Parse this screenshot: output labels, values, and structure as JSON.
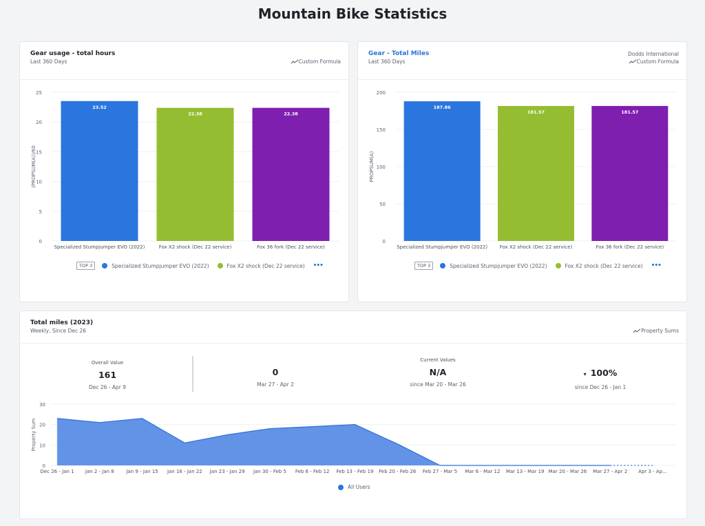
{
  "page": {
    "title": "Mountain Bike Statistics"
  },
  "cards": {
    "hours": {
      "title": "Gear usage - total hours",
      "subtitle": "Last 360 Days",
      "metric": "Custom Formula",
      "legend": {
        "badge": "TOP 3",
        "items": [
          "Specialized Stumpjumper EVO (2022)",
          "Fox X2 shock (Dec 22 service)"
        ],
        "more": "•••"
      }
    },
    "miles": {
      "title": "Gear - Total Miles",
      "subtitle": "Last 360 Days",
      "org": "Dodds International",
      "metric": "Custom Formula",
      "legend": {
        "badge": "TOP 3",
        "items": [
          "Specialized Stumpjumper EVO (2022)",
          "Fox X2 shock (Dec 22 service)"
        ],
        "more": "•••"
      }
    },
    "total": {
      "title": "Total miles (2023)",
      "subtitle": "Weekly, Since Dec 26",
      "metric": "Property Sums",
      "kpis": {
        "overall": {
          "label": "Overall Value",
          "value": "161",
          "range": "Dec 26 - Apr 9"
        },
        "latest": {
          "value": "0",
          "range": "Mar 27 - Apr 2"
        },
        "current": {
          "label": "Current Values",
          "value": "N/A",
          "range": "since Mar 20 - Mar 26"
        },
        "change": {
          "arrow": "▾",
          "value": "100%",
          "range": "since Dec 26 - Jan 1"
        }
      },
      "legend": {
        "items": [
          "All Users"
        ]
      }
    }
  },
  "colors": {
    "blue": "#2a76de",
    "green": "#95bd31",
    "purple": "#7e1fb0",
    "area": "#6393e6",
    "areaLine": "#2f6fd8"
  },
  "chart_data": [
    {
      "type": "bar",
      "title": "Gear usage - total hours",
      "ylabel": "(PROPSUM(A))/60",
      "xlabel": "",
      "categories": [
        "Specialized Stumpjumper EVO (2022)",
        "Fox X2 shock (Dec 22 service)",
        "Fox 36 fork (Dec 22 service)"
      ],
      "values": [
        23.52,
        22.38,
        22.38
      ],
      "labels": [
        "23.52",
        "22.38",
        "22.38"
      ],
      "yticks": [
        0,
        5,
        10,
        15,
        20,
        25
      ],
      "ylim": [
        0,
        25
      ],
      "grid": true
    },
    {
      "type": "bar",
      "title": "Gear - Total Miles",
      "ylabel": "PROPSUM(A)",
      "xlabel": "",
      "categories": [
        "Specialized Stumpjumper EVO (2022)",
        "Fox X2 shock (Dec 22 service)",
        "Fox 36 fork (Dec 22 service)"
      ],
      "values": [
        187.86,
        181.57,
        181.57
      ],
      "labels": [
        "187.86",
        "181.57",
        "181.57"
      ],
      "yticks": [
        0,
        50,
        100,
        150,
        200
      ],
      "ylim": [
        0,
        200
      ],
      "grid": true
    },
    {
      "type": "area",
      "title": "Total miles (2023)",
      "ylabel": "Property Sum",
      "xlabel": "",
      "categories": [
        "Dec 26 - Jan 1",
        "Jan 2 - Jan 8",
        "Jan 9 - Jan 15",
        "Jan 16 - Jan 22",
        "Jan 23 - Jan 29",
        "Jan 30 - Feb 5",
        "Feb 6 - Feb 12",
        "Feb 13 - Feb 19",
        "Feb 20 - Feb 26",
        "Feb 27 - Mar 5",
        "Mar 6 - Mar 12",
        "Mar 13 - Mar 19",
        "Mar 20 - Mar 26",
        "Mar 27 - Apr 2",
        "Apr 3 - Ap..."
      ],
      "series": [
        {
          "name": "All Users",
          "values": [
            23,
            21,
            23,
            11,
            15,
            18,
            19,
            20,
            10.5,
            0,
            0,
            0,
            0,
            0,
            0
          ],
          "incomplete_from_index": 13
        }
      ],
      "yticks": [
        0,
        10,
        20,
        30
      ],
      "ylim": [
        0,
        30
      ],
      "grid": true,
      "legend": "bottom-center"
    }
  ]
}
